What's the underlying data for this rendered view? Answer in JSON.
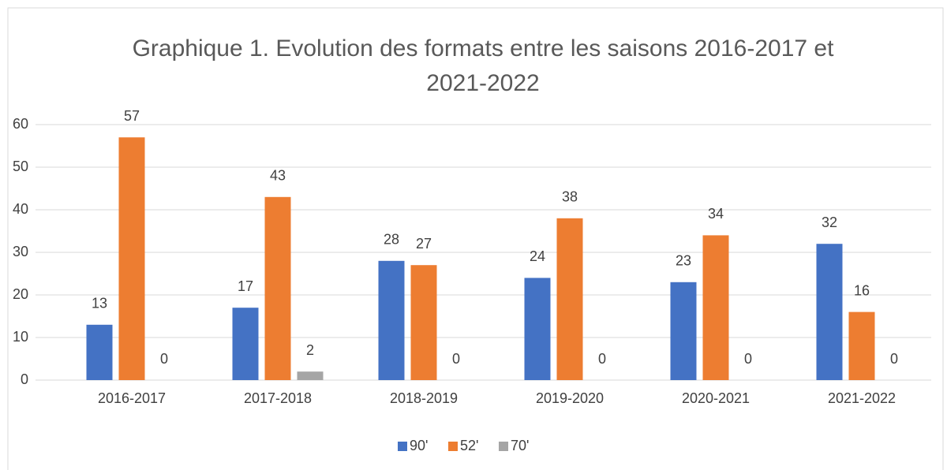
{
  "chart_data": {
    "type": "bar",
    "title": "Graphique 1. Evolution des formats entre les saisons 2016-2017 et 2021-2022",
    "categories": [
      "2016-2017",
      "2017-2018",
      "2018-2019",
      "2019-2020",
      "2020-2021",
      "2021-2022"
    ],
    "series": [
      {
        "name": "90'",
        "color": "#4472c4",
        "values": [
          13,
          17,
          28,
          24,
          23,
          32
        ]
      },
      {
        "name": "52'",
        "color": "#ed7d31",
        "values": [
          57,
          43,
          27,
          38,
          34,
          16
        ]
      },
      {
        "name": "70'",
        "color": "#a5a5a5",
        "values": [
          0,
          2,
          0,
          0,
          0,
          0
        ]
      }
    ],
    "ylim": [
      0,
      60
    ],
    "yticks": [
      0,
      10,
      20,
      30,
      40,
      50,
      60
    ],
    "grid": true,
    "legend": "bottom"
  }
}
